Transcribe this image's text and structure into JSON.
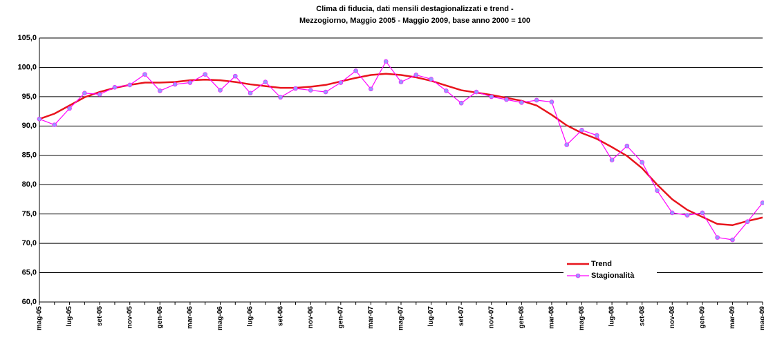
{
  "chart_data": {
    "type": "line",
    "title": [
      "Clima di fiducia, dati mensili destagionalizzati e trend -",
      "Mezzogiorno, Maggio 2005 - Maggio 2009, base anno 2000 = 100"
    ],
    "categories": [
      "mag-05",
      null,
      "lug-05",
      null,
      "set-05",
      null,
      "nov-05",
      null,
      "gen-06",
      null,
      "mar-06",
      null,
      "mag-06",
      null,
      "lug-06",
      null,
      "set-06",
      null,
      "nov-06",
      null,
      "gen-07",
      null,
      "mar-07",
      null,
      "mag-07",
      null,
      "lug-07",
      null,
      "set-07",
      null,
      "nov-07",
      null,
      "gen-08",
      null,
      "mar-08",
      null,
      "mag-08",
      null,
      "lug-08",
      null,
      "set-08",
      null,
      "nov-08",
      null,
      "gen-09",
      null,
      "mar-09",
      null,
      "mag-09"
    ],
    "series": [
      {
        "name": "Trend",
        "color": "#e8141c",
        "markers": false,
        "values": [
          91.2,
          92.1,
          93.5,
          94.9,
          95.8,
          96.5,
          97.0,
          97.4,
          97.4,
          97.5,
          97.8,
          97.9,
          97.8,
          97.5,
          97.1,
          96.8,
          96.5,
          96.5,
          96.7,
          97.0,
          97.6,
          98.2,
          98.7,
          98.9,
          98.7,
          98.3,
          97.7,
          96.9,
          96.1,
          95.7,
          95.3,
          94.8,
          94.3,
          93.5,
          91.9,
          90.1,
          88.8,
          87.8,
          86.4,
          84.9,
          82.8,
          80.0,
          77.5,
          75.7,
          74.5,
          73.3,
          73.1,
          73.8,
          74.4
        ]
      },
      {
        "name": "Stagionalità",
        "color": "#ff00ff",
        "markers": true,
        "marker_color": "#9999ff",
        "values": [
          91.2,
          90.2,
          93.0,
          95.6,
          95.4,
          96.6,
          97.0,
          98.8,
          96.0,
          97.1,
          97.4,
          98.8,
          96.1,
          98.5,
          95.6,
          97.5,
          94.9,
          96.4,
          96.1,
          95.8,
          97.4,
          99.4,
          96.3,
          101.0,
          97.5,
          98.7,
          98.0,
          96.0,
          93.9,
          95.8,
          95.0,
          94.5,
          94.0,
          94.4,
          94.1,
          86.8,
          89.3,
          88.4,
          84.2,
          86.6,
          83.8,
          79.0,
          75.2,
          74.8,
          75.2,
          71.0,
          70.6,
          73.7,
          76.9
        ]
      }
    ],
    "ylim": [
      60,
      105
    ],
    "yticks": [
      {
        "value": 60,
        "label": "60,0"
      },
      {
        "value": 65,
        "label": "65,0"
      },
      {
        "value": 70,
        "label": "70,0"
      },
      {
        "value": 75,
        "label": "75,0"
      },
      {
        "value": 80,
        "label": "80,0"
      },
      {
        "value": 85,
        "label": "85,0"
      },
      {
        "value": 90,
        "label": "90,0"
      },
      {
        "value": 95,
        "label": "95,0"
      },
      {
        "value": 100,
        "label": "100,0"
      },
      {
        "value": 105,
        "label": "105,0"
      }
    ],
    "grid": true,
    "legend": "lower right"
  }
}
